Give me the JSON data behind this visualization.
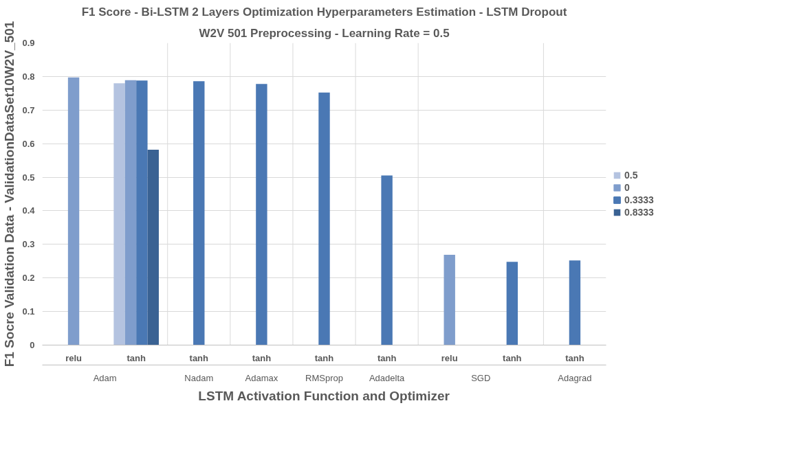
{
  "chart_data": {
    "type": "bar",
    "title": "F1 Score - Bi-LSTM 2 Layers Optimization Hyperparameters Estimation - LSTM Dropout",
    "subtitle": "W2V 501 Preprocessing - Learning Rate = 0.5",
    "xlabel": "LSTM Activation Function and Optimizer",
    "ylabel": "F1 Socre Validation Data - ValidationDataSet10W2V_501",
    "legend_title": null,
    "categories": [
      "relu",
      "tanh",
      "tanh",
      "tanh",
      "tanh",
      "tanh",
      "relu",
      "tanh",
      "tanh"
    ],
    "annotations": [
      "Adam",
      "Nadam",
      "Adamax",
      "RMSprop",
      "Adadelta",
      "SGD",
      "Adagrad"
    ],
    "series": [
      {
        "name": "0.5",
        "color": "#b4c3e0",
        "values": [
          null,
          0.78,
          null,
          null,
          null,
          null,
          null,
          null,
          null
        ]
      },
      {
        "name": "0",
        "color": "#7f9dcc",
        "values": [
          0.797,
          0.789,
          null,
          null,
          null,
          null,
          0.269,
          null,
          null
        ]
      },
      {
        "name": "0.3333",
        "color": "#4a78b4",
        "values": [
          null,
          0.788,
          0.786,
          0.778,
          0.752,
          0.505,
          null,
          0.248,
          0.252
        ]
      },
      {
        "name": "0.8333",
        "color": "#3a6293",
        "values": [
          null,
          0.582,
          null,
          null,
          null,
          null,
          null,
          null,
          null
        ]
      }
    ],
    "ylim": [
      0,
      0.9
    ],
    "yticks": [
      0,
      0.1,
      0.2,
      0.3,
      0.4,
      0.5,
      0.6,
      0.7,
      0.8,
      0.9
    ],
    "grid": "y",
    "legend": "right"
  }
}
